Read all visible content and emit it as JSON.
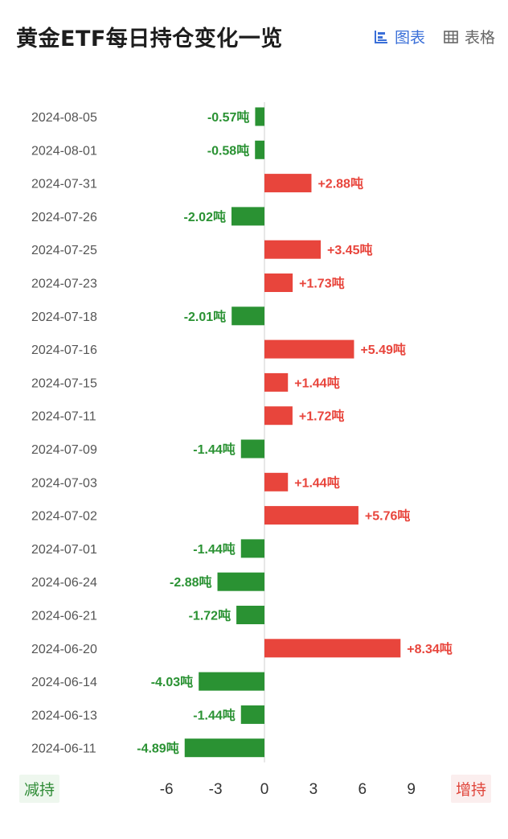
{
  "header": {
    "title": "黄金ETF每日持仓变化一览",
    "tabs": [
      {
        "label": "图表",
        "icon": "bar-chart-icon",
        "active": true
      },
      {
        "label": "表格",
        "icon": "table-grid-icon",
        "active": false
      }
    ]
  },
  "legend": {
    "decrease_label": "减持",
    "increase_label": "增持"
  },
  "colors": {
    "positive": "#e8453c",
    "negative": "#2a9233",
    "accent": "#3a6fd8",
    "axis_text": "#333333",
    "date_text": "#555555"
  },
  "chart_data": {
    "type": "bar",
    "orientation": "horizontal",
    "title": "黄金ETF每日持仓变化一览",
    "unit": "吨",
    "categories": [
      "2024-08-05",
      "2024-08-01",
      "2024-07-31",
      "2024-07-26",
      "2024-07-25",
      "2024-07-23",
      "2024-07-18",
      "2024-07-16",
      "2024-07-15",
      "2024-07-11",
      "2024-07-09",
      "2024-07-03",
      "2024-07-02",
      "2024-07-01",
      "2024-06-24",
      "2024-06-21",
      "2024-06-20",
      "2024-06-14",
      "2024-06-13",
      "2024-06-11"
    ],
    "values": [
      -0.57,
      -0.58,
      2.88,
      -2.02,
      3.45,
      1.73,
      -2.01,
      5.49,
      1.44,
      1.72,
      -1.44,
      1.44,
      5.76,
      -1.44,
      -2.88,
      -1.72,
      8.34,
      -4.03,
      -1.44,
      -4.89
    ],
    "labels": [
      "-0.57吨",
      "-0.58吨",
      "+2.88吨",
      "-2.02吨",
      "+3.45吨",
      "+1.73吨",
      "-2.01吨",
      "+5.49吨",
      "+1.44吨",
      "+1.72吨",
      "-1.44吨",
      "+1.44吨",
      "+5.76吨",
      "-1.44吨",
      "-2.88吨",
      "-1.72吨",
      "+8.34吨",
      "-4.03吨",
      "-1.44吨",
      "-4.89吨"
    ],
    "xticks": [
      -6,
      -3,
      0,
      3,
      6,
      9
    ],
    "xtick_labels": [
      "-6",
      "-3",
      "0",
      "3",
      "6",
      "9"
    ],
    "xlim": [
      -7,
      11
    ],
    "grid": false,
    "legend": "none"
  }
}
